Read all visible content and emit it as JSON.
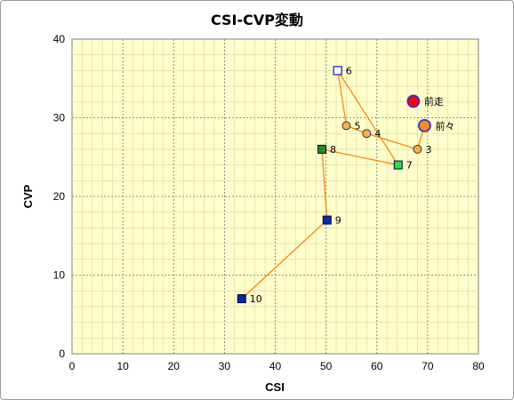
{
  "chart_data": {
    "type": "scatter",
    "title": "CSI-CVP変動",
    "xlabel": "CSI",
    "ylabel": "CVP",
    "xlim": [
      0,
      80
    ],
    "ylim": [
      0,
      40
    ],
    "x_ticks": [
      0,
      10,
      20,
      30,
      40,
      50,
      60,
      70,
      80
    ],
    "y_ticks": [
      0,
      10,
      20,
      30,
      40
    ],
    "grid": true,
    "legend": "none",
    "colors": {
      "plot_bg": "#ffffcc",
      "line": "#ff8c1a",
      "marker_orange": "#f5b041",
      "marker_green": "#33dd33",
      "marker_darkgreen": "#1f8a1f",
      "marker_navy": "#0a2a9a",
      "marker_red": "#ff0000",
      "marker_outline": "#3333cc"
    },
    "points": [
      {
        "label": "前走",
        "x": 67.2,
        "y": 32.1,
        "marker": "circle-large",
        "color": "#ff0000",
        "connected": false
      },
      {
        "label": "前々",
        "x": 69.4,
        "y": 29.0,
        "marker": "circle-large",
        "color": "#ff8c1a"
      },
      {
        "label": "3",
        "x": 68.0,
        "y": 26.0,
        "marker": "circle",
        "color": "#f5b041"
      },
      {
        "label": "4",
        "x": 58.0,
        "y": 28.0,
        "marker": "circle",
        "color": "#f5b041"
      },
      {
        "label": "5",
        "x": 54.0,
        "y": 29.0,
        "marker": "circle",
        "color": "#f5b041"
      },
      {
        "label": "6",
        "x": 52.3,
        "y": 36.0,
        "marker": "square-open",
        "color": "#ffffff"
      },
      {
        "label": "7",
        "x": 64.2,
        "y": 24.0,
        "marker": "square",
        "color": "#33dd33"
      },
      {
        "label": "8",
        "x": 49.2,
        "y": 26.0,
        "marker": "square",
        "color": "#1f8a1f"
      },
      {
        "label": "9",
        "x": 50.2,
        "y": 17.0,
        "marker": "square",
        "color": "#0a2a9a"
      },
      {
        "label": "10",
        "x": 33.4,
        "y": 7.0,
        "marker": "square",
        "color": "#0a2a9a"
      }
    ]
  }
}
